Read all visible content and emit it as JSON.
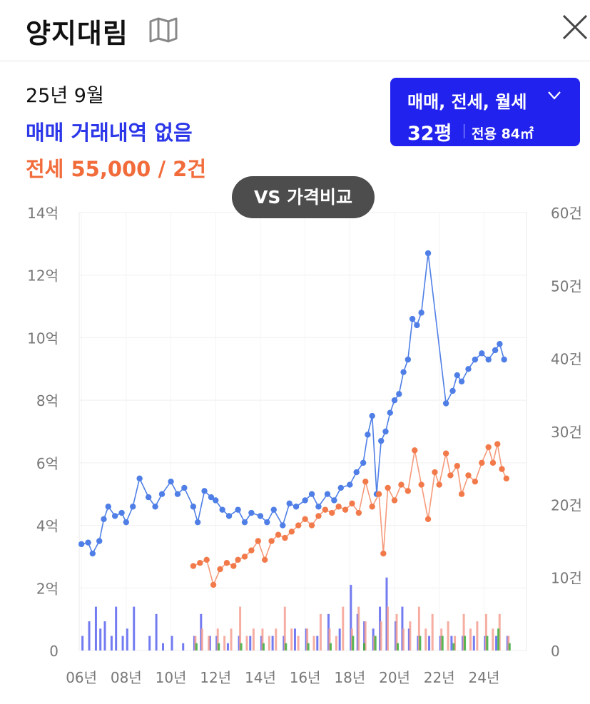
{
  "header": {
    "title": "양지대림",
    "map_icon": "map-icon",
    "close_icon": "close-icon"
  },
  "summary": {
    "date": "25년 9월",
    "sale": "매매 거래내역 없음",
    "jeonse": "전세 55,000 / 2건"
  },
  "filter": {
    "types": "매매, 전세, 월세",
    "size": "32평",
    "area": "전용 84㎡"
  },
  "compare_button": "VS 가격비교",
  "colors": {
    "sale": "#2b37e8",
    "sale_line": "#4f7fe6",
    "jeonse": "#f26b3a",
    "jeonse_line": "#f59a7a",
    "rent_bar": "#3cae3c",
    "filter_bg": "#2222ee"
  },
  "chart_data": {
    "type": "line",
    "x_ticks": [
      "06년",
      "08년",
      "10년",
      "12년",
      "14년",
      "16년",
      "18년",
      "20년",
      "22년",
      "24년"
    ],
    "y_left_ticks": [
      "0",
      "2억",
      "4억",
      "6억",
      "8억",
      "10억",
      "12억",
      "14억"
    ],
    "y_right_ticks": [
      "0",
      "10건",
      "20건",
      "30건",
      "40건",
      "50건",
      "60건"
    ],
    "y_left_range": [
      0,
      14
    ],
    "y_right_range": [
      0,
      60
    ],
    "x_range": [
      2005.9,
      2025.9
    ],
    "grid": true,
    "series": [
      {
        "name": "매매",
        "points": [
          [
            2006.0,
            3.4
          ],
          [
            2006.3,
            3.45
          ],
          [
            2006.5,
            3.1
          ],
          [
            2006.8,
            3.5
          ],
          [
            2007.0,
            4.2
          ],
          [
            2007.2,
            4.6
          ],
          [
            2007.5,
            4.3
          ],
          [
            2007.8,
            4.4
          ],
          [
            2008.0,
            4.1
          ],
          [
            2008.3,
            4.6
          ],
          [
            2008.6,
            5.5
          ],
          [
            2009.0,
            4.9
          ],
          [
            2009.3,
            4.6
          ],
          [
            2009.6,
            5.0
          ],
          [
            2010.0,
            5.4
          ],
          [
            2010.3,
            5.0
          ],
          [
            2010.6,
            5.2
          ],
          [
            2011.0,
            4.6
          ],
          [
            2011.2,
            4.1
          ],
          [
            2011.5,
            5.1
          ],
          [
            2011.8,
            4.9
          ],
          [
            2012.0,
            4.8
          ],
          [
            2012.3,
            4.5
          ],
          [
            2012.6,
            4.3
          ],
          [
            2013.0,
            4.5
          ],
          [
            2013.3,
            4.1
          ],
          [
            2013.6,
            4.4
          ],
          [
            2014.0,
            4.3
          ],
          [
            2014.3,
            4.1
          ],
          [
            2014.6,
            4.5
          ],
          [
            2015.0,
            4.0
          ],
          [
            2015.3,
            4.7
          ],
          [
            2015.6,
            4.6
          ],
          [
            2016.0,
            4.8
          ],
          [
            2016.3,
            5.0
          ],
          [
            2016.6,
            4.6
          ],
          [
            2017.0,
            5.0
          ],
          [
            2017.3,
            4.8
          ],
          [
            2017.6,
            5.2
          ],
          [
            2018.0,
            5.3
          ],
          [
            2018.3,
            5.7
          ],
          [
            2018.6,
            6.0
          ],
          [
            2018.8,
            6.9
          ],
          [
            2019.0,
            7.5
          ],
          [
            2019.2,
            5.0
          ],
          [
            2019.4,
            6.7
          ],
          [
            2019.6,
            7.0
          ],
          [
            2019.8,
            7.6
          ],
          [
            2020.0,
            8.0
          ],
          [
            2020.2,
            8.2
          ],
          [
            2020.4,
            8.9
          ],
          [
            2020.6,
            9.3
          ],
          [
            2020.8,
            10.6
          ],
          [
            2021.0,
            10.4
          ],
          [
            2021.2,
            10.8
          ],
          [
            2021.5,
            12.7
          ],
          [
            2022.3,
            7.9
          ],
          [
            2022.6,
            8.3
          ],
          [
            2022.8,
            8.8
          ],
          [
            2023.0,
            8.6
          ],
          [
            2023.3,
            9.0
          ],
          [
            2023.6,
            9.3
          ],
          [
            2023.9,
            9.5
          ],
          [
            2024.2,
            9.3
          ],
          [
            2024.5,
            9.6
          ],
          [
            2024.7,
            9.8
          ],
          [
            2024.9,
            9.3
          ]
        ]
      },
      {
        "name": "전세",
        "points": [
          [
            2011.0,
            2.7
          ],
          [
            2011.3,
            2.8
          ],
          [
            2011.6,
            2.9
          ],
          [
            2011.9,
            2.1
          ],
          [
            2012.2,
            2.6
          ],
          [
            2012.5,
            2.8
          ],
          [
            2012.8,
            2.7
          ],
          [
            2013.0,
            2.9
          ],
          [
            2013.3,
            3.0
          ],
          [
            2013.6,
            3.2
          ],
          [
            2013.9,
            3.5
          ],
          [
            2014.2,
            2.9
          ],
          [
            2014.5,
            3.5
          ],
          [
            2014.8,
            3.7
          ],
          [
            2015.1,
            3.6
          ],
          [
            2015.4,
            3.8
          ],
          [
            2015.7,
            4.0
          ],
          [
            2016.0,
            4.2
          ],
          [
            2016.3,
            4.0
          ],
          [
            2016.6,
            4.3
          ],
          [
            2016.9,
            4.5
          ],
          [
            2017.2,
            4.4
          ],
          [
            2017.5,
            4.6
          ],
          [
            2017.8,
            4.5
          ],
          [
            2018.1,
            4.7
          ],
          [
            2018.4,
            4.4
          ],
          [
            2018.7,
            5.4
          ],
          [
            2019.0,
            4.6
          ],
          [
            2019.3,
            5.0
          ],
          [
            2019.5,
            3.1
          ],
          [
            2019.7,
            5.2
          ],
          [
            2020.0,
            4.8
          ],
          [
            2020.3,
            5.3
          ],
          [
            2020.6,
            5.1
          ],
          [
            2020.9,
            6.4
          ],
          [
            2021.2,
            5.3
          ],
          [
            2021.5,
            4.2
          ],
          [
            2021.8,
            5.7
          ],
          [
            2022.0,
            5.3
          ],
          [
            2022.3,
            6.3
          ],
          [
            2022.5,
            5.6
          ],
          [
            2022.8,
            5.9
          ],
          [
            2023.0,
            5.0
          ],
          [
            2023.3,
            5.6
          ],
          [
            2023.6,
            5.4
          ],
          [
            2023.9,
            6.0
          ],
          [
            2024.2,
            6.5
          ],
          [
            2024.4,
            6.0
          ],
          [
            2024.6,
            6.6
          ],
          [
            2024.8,
            5.8
          ],
          [
            2025.0,
            5.5
          ]
        ]
      }
    ],
    "volume_bars": [
      {
        "name": "매매 건수",
        "color": "#5a64ee",
        "values": [
          [
            2006.0,
            2
          ],
          [
            2006.3,
            4
          ],
          [
            2006.6,
            6
          ],
          [
            2006.8,
            3
          ],
          [
            2007.0,
            4
          ],
          [
            2007.3,
            2
          ],
          [
            2007.5,
            6
          ],
          [
            2007.8,
            2
          ],
          [
            2008.0,
            3
          ],
          [
            2008.3,
            6
          ],
          [
            2009.0,
            2
          ],
          [
            2009.3,
            5
          ],
          [
            2009.6,
            1
          ],
          [
            2010.0,
            2
          ],
          [
            2010.5,
            1
          ],
          [
            2011.0,
            2
          ],
          [
            2011.3,
            5
          ],
          [
            2011.7,
            2
          ],
          [
            2012.0,
            2
          ],
          [
            2012.5,
            1
          ],
          [
            2013.0,
            2
          ],
          [
            2013.5,
            2
          ],
          [
            2014.0,
            2
          ],
          [
            2014.5,
            2
          ],
          [
            2015.0,
            2
          ],
          [
            2015.5,
            3
          ],
          [
            2016.0,
            3
          ],
          [
            2016.5,
            2
          ],
          [
            2017.0,
            5
          ],
          [
            2017.5,
            3
          ],
          [
            2018.0,
            9
          ],
          [
            2018.3,
            5
          ],
          [
            2018.6,
            4
          ],
          [
            2019.0,
            3
          ],
          [
            2019.3,
            6
          ],
          [
            2019.6,
            10
          ],
          [
            2020.0,
            4
          ],
          [
            2020.3,
            6
          ],
          [
            2020.6,
            3
          ],
          [
            2021.0,
            2
          ],
          [
            2021.5,
            2
          ],
          [
            2022.0,
            2
          ],
          [
            2022.5,
            2
          ],
          [
            2023.0,
            2
          ],
          [
            2023.5,
            2
          ],
          [
            2024.0,
            2
          ],
          [
            2024.5,
            2
          ],
          [
            2025.0,
            2
          ]
        ]
      },
      {
        "name": "전세 건수",
        "color": "#f5a092",
        "values": [
          [
            2011.0,
            2
          ],
          [
            2011.3,
            3
          ],
          [
            2011.6,
            2
          ],
          [
            2012.0,
            3
          ],
          [
            2012.3,
            2
          ],
          [
            2012.6,
            3
          ],
          [
            2013.0,
            6
          ],
          [
            2013.3,
            2
          ],
          [
            2013.6,
            3
          ],
          [
            2014.0,
            3
          ],
          [
            2014.3,
            2
          ],
          [
            2014.6,
            3
          ],
          [
            2015.0,
            6
          ],
          [
            2015.3,
            3
          ],
          [
            2015.6,
            2
          ],
          [
            2016.0,
            3
          ],
          [
            2016.3,
            2
          ],
          [
            2016.6,
            5
          ],
          [
            2017.0,
            3
          ],
          [
            2017.3,
            2
          ],
          [
            2017.6,
            6
          ],
          [
            2018.0,
            3
          ],
          [
            2018.3,
            6
          ],
          [
            2018.6,
            4
          ],
          [
            2019.0,
            2
          ],
          [
            2019.3,
            4
          ],
          [
            2019.6,
            6
          ],
          [
            2020.0,
            5
          ],
          [
            2020.3,
            3
          ],
          [
            2020.6,
            4
          ],
          [
            2021.0,
            6
          ],
          [
            2021.3,
            3
          ],
          [
            2021.6,
            5
          ],
          [
            2022.0,
            3
          ],
          [
            2022.3,
            4
          ],
          [
            2022.6,
            2
          ],
          [
            2023.0,
            5
          ],
          [
            2023.3,
            3
          ],
          [
            2023.6,
            4
          ],
          [
            2024.0,
            5
          ],
          [
            2024.3,
            3
          ],
          [
            2024.6,
            5
          ],
          [
            2025.0,
            2
          ]
        ]
      },
      {
        "name": "월세 건수",
        "color": "#3cae3c",
        "values": [
          [
            2011.0,
            1
          ],
          [
            2012.0,
            1
          ],
          [
            2013.0,
            1
          ],
          [
            2014.0,
            1
          ],
          [
            2015.0,
            1
          ],
          [
            2016.0,
            1
          ],
          [
            2017.0,
            1
          ],
          [
            2018.0,
            2
          ],
          [
            2018.5,
            1
          ],
          [
            2019.0,
            2
          ],
          [
            2020.0,
            1
          ],
          [
            2021.0,
            2
          ],
          [
            2022.0,
            2
          ],
          [
            2022.5,
            1
          ],
          [
            2023.0,
            2
          ],
          [
            2024.0,
            2
          ],
          [
            2024.5,
            3
          ],
          [
            2025.0,
            1
          ]
        ]
      }
    ]
  }
}
